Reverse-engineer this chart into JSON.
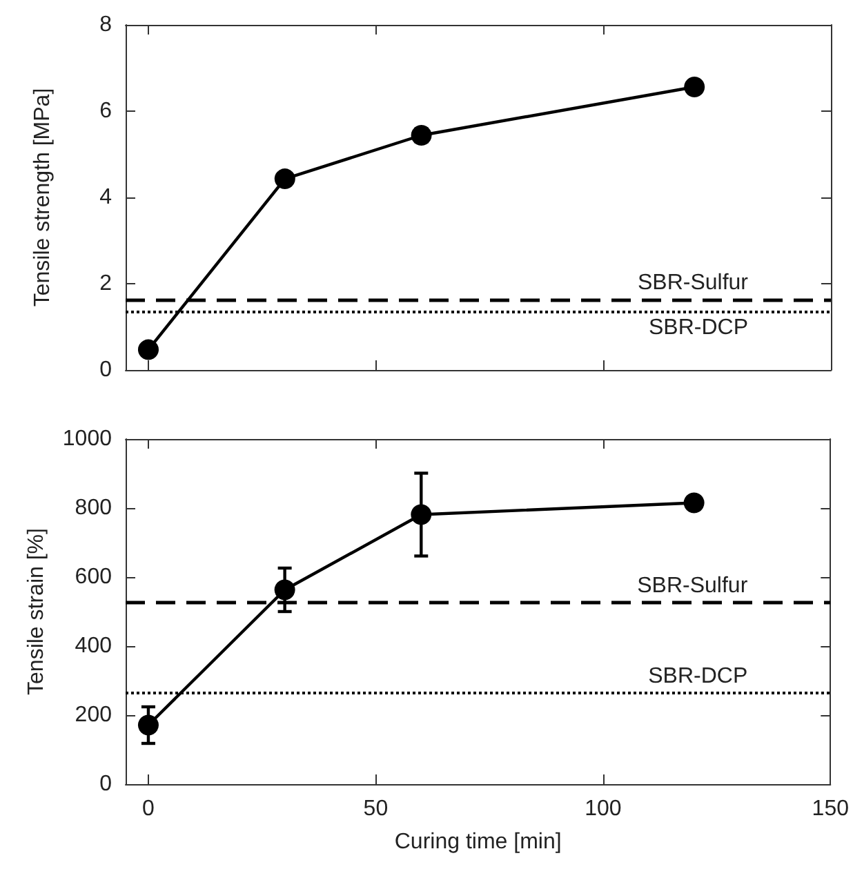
{
  "chart_data": [
    {
      "type": "line",
      "ylabel": "Tensile strength [MPa]",
      "x": [
        0,
        30,
        60,
        120
      ],
      "marker": "circle",
      "line_style": "solid",
      "grid": false,
      "tick_labels": "y",
      "series": [
        {
          "color": "#000000",
          "values": [
            0.47,
            4.43,
            5.44,
            6.56
          ],
          "errors": [
            null,
            null,
            0.15,
            0.1
          ]
        }
      ],
      "xlim": [
        -5,
        150
      ],
      "xticks": [
        0,
        50,
        100,
        150
      ],
      "ylim": [
        0,
        8
      ],
      "yticks": [
        0,
        2,
        4,
        6,
        8
      ],
      "ref_lines": [
        {
          "axis": "y",
          "value": 1.64,
          "label": "SBR-Sulfur",
          "line_style": "dashed"
        },
        {
          "axis": "y",
          "value": 1.36,
          "label": "SBR-DCP",
          "line_style": "dotted"
        }
      ]
    },
    {
      "type": "line",
      "xlabel": "Curing time [min]",
      "ylabel": "Tensile strain [%]",
      "x": [
        0,
        30,
        60,
        120
      ],
      "marker": "circle",
      "line_style": "solid",
      "grid": false,
      "series": [
        {
          "color": "#000000",
          "values": [
            171,
            563,
            781,
            815
          ],
          "errors": [
            53,
            63,
            120,
            15
          ]
        }
      ],
      "xlim": [
        -5,
        150
      ],
      "xticks": [
        0,
        50,
        100,
        150
      ],
      "ylim": [
        0,
        1000
      ],
      "yticks": [
        0,
        200,
        400,
        600,
        800,
        1000
      ],
      "ref_lines": [
        {
          "axis": "y",
          "value": 526,
          "label": "SBR-Sulfur",
          "line_style": "dashed"
        },
        {
          "axis": "y",
          "value": 264,
          "label": "SBR-DCP",
          "line_style": "dotted"
        }
      ]
    }
  ]
}
